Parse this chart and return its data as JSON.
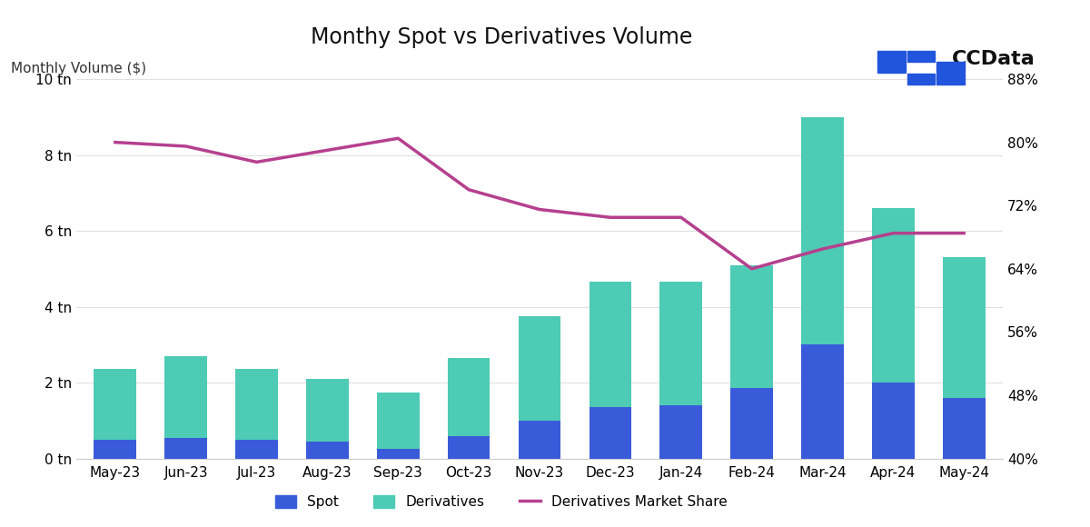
{
  "categories": [
    "May-23",
    "Jun-23",
    "Jul-23",
    "Aug-23",
    "Sep-23",
    "Oct-23",
    "Nov-23",
    "Dec-23",
    "Jan-24",
    "Feb-24",
    "Mar-24",
    "Apr-24",
    "May-24"
  ],
  "spot": [
    0.5,
    0.55,
    0.5,
    0.45,
    0.25,
    0.6,
    1.0,
    1.35,
    1.4,
    1.85,
    3.0,
    2.0,
    1.6
  ],
  "derivatives": [
    2.35,
    2.7,
    2.35,
    2.1,
    1.75,
    2.65,
    3.75,
    4.65,
    4.65,
    5.1,
    9.0,
    6.6,
    5.3
  ],
  "deriv_market_share": [
    80.0,
    79.5,
    77.5,
    79.0,
    80.5,
    74.0,
    71.5,
    70.5,
    70.5,
    64.0,
    66.5,
    68.5,
    68.5
  ],
  "title": "Monthy Spot vs Derivatives Volume",
  "ylabel_left": "Monthly Volume ($)",
  "ylim_left": [
    0,
    10
  ],
  "ylim_right": [
    40,
    88
  ],
  "yticks_left": [
    0,
    2,
    4,
    6,
    8,
    10
  ],
  "ytick_labels_left": [
    "0 tn",
    "2 tn",
    "4 tn",
    "6 tn",
    "8 tn",
    "10 tn"
  ],
  "yticks_right": [
    40,
    48,
    56,
    64,
    72,
    80,
    88
  ],
  "ytick_labels_right": [
    "40%",
    "48%",
    "56%",
    "64%",
    "72%",
    "80%",
    "88%"
  ],
  "spot_color": "#3a5bd9",
  "derivatives_color": "#4ecbb4",
  "line_color": "#b5408e",
  "background_color": "#ffffff",
  "legend_spot": "Spot",
  "legend_deriv": "Derivatives",
  "legend_line": "Derivatives Market Share",
  "title_fontsize": 17,
  "tick_fontsize": 11,
  "watermark_alpha": 0.07,
  "logo_color": "#2255dd",
  "logo_text_color": "#111111"
}
